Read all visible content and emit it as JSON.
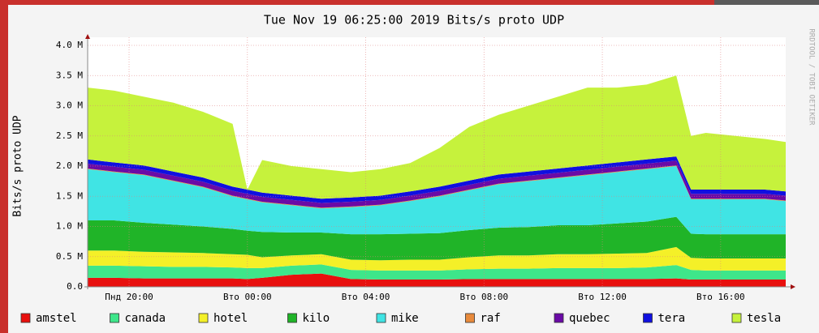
{
  "chart_data": {
    "type": "stacked-area",
    "title": "Tue Nov 19 06:25:00 2019 Bits/s proto UDP",
    "y_label": "Bits/s proto UDP",
    "side_text": "RRDTOOL / TOBI OETIKER",
    "x": [
      18.6,
      19.5,
      20.5,
      21.5,
      22.5,
      23.5,
      24.0,
      24.5,
      25.5,
      26.5,
      27.5,
      28.5,
      29.5,
      30.5,
      31.5,
      32.5,
      33.5,
      34.5,
      35.5,
      36.5,
      37.5,
      38.5,
      39.0,
      39.5,
      40.5,
      41.5,
      42.2
    ],
    "xlim": [
      18.6,
      42.2
    ],
    "xticks": [
      {
        "value": 20,
        "label": "Пнд 20:00"
      },
      {
        "value": 24,
        "label": "Вто 00:00"
      },
      {
        "value": 28,
        "label": "Вто 04:00"
      },
      {
        "value": 32,
        "label": "Вто 08:00"
      },
      {
        "value": 36,
        "label": "Вто 12:00"
      },
      {
        "value": 40,
        "label": "Вто 16:00"
      }
    ],
    "ylim": [
      0,
      4.0
    ],
    "yticks": [
      {
        "value": 0,
        "label": "0.0"
      },
      {
        "value": 0.5,
        "label": "0.5 M"
      },
      {
        "value": 1.0,
        "label": "1.0 M"
      },
      {
        "value": 1.5,
        "label": "1.5 M"
      },
      {
        "value": 2.0,
        "label": "2.0 M"
      },
      {
        "value": 2.5,
        "label": "2.5 M"
      },
      {
        "value": 3.0,
        "label": "3.0 M"
      },
      {
        "value": 3.5,
        "label": "3.5 M"
      },
      {
        "value": 4.0,
        "label": "4.0 M"
      }
    ],
    "grid": true,
    "series": [
      {
        "name": "amstel",
        "color": "#e8100e",
        "values": [
          0.15,
          0.15,
          0.14,
          0.14,
          0.14,
          0.14,
          0.13,
          0.15,
          0.2,
          0.22,
          0.13,
          0.12,
          0.12,
          0.12,
          0.13,
          0.13,
          0.13,
          0.13,
          0.13,
          0.13,
          0.13,
          0.14,
          0.12,
          0.12,
          0.12,
          0.12,
          0.12
        ]
      },
      {
        "name": "canada",
        "color": "#3ee68a",
        "values": [
          0.2,
          0.2,
          0.2,
          0.19,
          0.19,
          0.18,
          0.18,
          0.16,
          0.15,
          0.15,
          0.15,
          0.15,
          0.15,
          0.15,
          0.16,
          0.17,
          0.17,
          0.18,
          0.18,
          0.18,
          0.19,
          0.22,
          0.16,
          0.15,
          0.15,
          0.15,
          0.15
        ]
      },
      {
        "name": "hotel",
        "color": "#f4f028",
        "values": [
          0.25,
          0.25,
          0.24,
          0.24,
          0.23,
          0.22,
          0.22,
          0.18,
          0.17,
          0.17,
          0.17,
          0.17,
          0.18,
          0.18,
          0.2,
          0.22,
          0.22,
          0.23,
          0.23,
          0.24,
          0.24,
          0.3,
          0.2,
          0.2,
          0.2,
          0.2,
          0.2
        ]
      },
      {
        "name": "kilo",
        "color": "#20b428",
        "values": [
          0.5,
          0.5,
          0.48,
          0.46,
          0.44,
          0.42,
          0.4,
          0.42,
          0.38,
          0.36,
          0.42,
          0.43,
          0.43,
          0.44,
          0.45,
          0.46,
          0.47,
          0.48,
          0.48,
          0.5,
          0.52,
          0.5,
          0.4,
          0.4,
          0.4,
          0.4,
          0.4
        ]
      },
      {
        "name": "mike",
        "color": "#40e4e4",
        "values": [
          0.85,
          0.8,
          0.79,
          0.72,
          0.65,
          0.54,
          0.52,
          0.49,
          0.45,
          0.4,
          0.45,
          0.48,
          0.54,
          0.61,
          0.66,
          0.72,
          0.76,
          0.78,
          0.83,
          0.85,
          0.87,
          0.84,
          0.57,
          0.58,
          0.58,
          0.58,
          0.55
        ]
      },
      {
        "name": "raf",
        "color": "#e88a3c",
        "values": [
          0.01,
          0.01,
          0.01,
          0.01,
          0.01,
          0.01,
          0.01,
          0.01,
          0.01,
          0.01,
          0.01,
          0.01,
          0.01,
          0.01,
          0.01,
          0.01,
          0.01,
          0.01,
          0.01,
          0.01,
          0.01,
          0.01,
          0.01,
          0.01,
          0.01,
          0.01,
          0.01
        ]
      },
      {
        "name": "quebec",
        "color": "#6a0aa6",
        "values": [
          0.08,
          0.08,
          0.08,
          0.08,
          0.08,
          0.08,
          0.08,
          0.08,
          0.08,
          0.08,
          0.08,
          0.08,
          0.08,
          0.08,
          0.08,
          0.08,
          0.08,
          0.08,
          0.08,
          0.08,
          0.08,
          0.08,
          0.08,
          0.08,
          0.08,
          0.08,
          0.08
        ]
      },
      {
        "name": "tera",
        "color": "#1010e0",
        "values": [
          0.07,
          0.07,
          0.07,
          0.07,
          0.07,
          0.07,
          0.07,
          0.07,
          0.07,
          0.07,
          0.07,
          0.07,
          0.07,
          0.07,
          0.07,
          0.07,
          0.07,
          0.07,
          0.07,
          0.07,
          0.07,
          0.07,
          0.07,
          0.07,
          0.07,
          0.07,
          0.07
        ]
      },
      {
        "name": "tesla",
        "color": "#c6f23c",
        "values": [
          1.19,
          1.19,
          1.14,
          1.14,
          1.09,
          1.04,
          0,
          0.54,
          0.49,
          0.49,
          0.42,
          0.44,
          0.47,
          0.64,
          0.89,
          0.99,
          1.09,
          1.19,
          1.29,
          1.24,
          1.24,
          1.34,
          0.89,
          0.94,
          0.89,
          0.84,
          0.82
        ]
      }
    ]
  }
}
